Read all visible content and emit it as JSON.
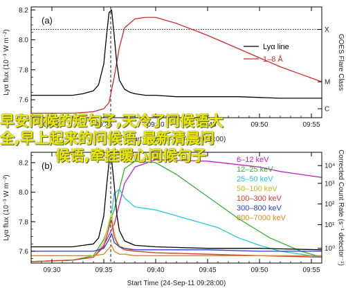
{
  "watermark": {
    "line1": "早安问候的短句子,天冷了问候语大",
    "line2": "全,早上起来的问候语,最新清晨问",
    "line3": "候语,牵挂暖心问候句子"
  },
  "chart_data": [
    {
      "type": "line",
      "panel_label": "(a)",
      "xlabel": "Start Time (24-Sep-11 09:28:00)",
      "ylabel": "Lyα flux (10⁻³ W m⁻²)",
      "right_label": "GOES Flare Class",
      "xlim": [
        "09:28",
        "09:56"
      ],
      "ylim": [
        7.48,
        8.22
      ],
      "x_ticks": [
        "09:30",
        "09:35",
        "09:40",
        "09:45",
        "09:50",
        "09:55"
      ],
      "y_ticks": [
        7.6,
        7.8,
        8.0,
        8.2
      ],
      "right_ticks": [
        "X",
        "M",
        "C"
      ],
      "right_tick_values": [
        8.07,
        7.72,
        7.54
      ],
      "reference_line": {
        "y": 8.07,
        "style": "dotted"
      },
      "vline": {
        "x": "09:35:40",
        "style": "dashed"
      },
      "legend_position": "top-right",
      "series": [
        {
          "name": "Lyα line",
          "color": "#000000",
          "x": [
            "09:28",
            "09:30",
            "09:32",
            "09:33",
            "09:34",
            "09:34:30",
            "09:35",
            "09:35:15",
            "09:35:30",
            "09:35:45",
            "09:36",
            "09:36:15",
            "09:36:30",
            "09:37",
            "09:37:30",
            "09:38",
            "09:39",
            "09:40",
            "09:42",
            "09:45",
            "09:48",
            "09:52",
            "09:56"
          ],
          "values": [
            7.63,
            7.63,
            7.63,
            7.64,
            7.66,
            7.7,
            7.84,
            8.02,
            8.18,
            8.2,
            8.03,
            7.84,
            7.73,
            7.67,
            7.65,
            7.64,
            7.63,
            7.63,
            7.62,
            7.62,
            7.62,
            7.61,
            7.61
          ]
        },
        {
          "name": "1–8 Å",
          "color": "#d2282d",
          "x": [
            "09:28",
            "09:32",
            "09:34",
            "09:35",
            "09:35:30",
            "09:36",
            "09:36:30",
            "09:37",
            "09:38",
            "09:39",
            "09:40",
            "09:42",
            "09:45",
            "09:48",
            "09:50",
            "09:52",
            "09:54",
            "09:56"
          ],
          "values": [
            7.51,
            7.51,
            7.52,
            7.54,
            7.58,
            7.75,
            7.95,
            8.08,
            8.14,
            8.15,
            8.15,
            8.11,
            8.03,
            7.94,
            7.88,
            7.82,
            7.77,
            7.72
          ]
        }
      ]
    },
    {
      "type": "line",
      "panel_label": "(b)",
      "xlabel": "Start Time (24-Sep-11 09:28:00)",
      "ylabel": "Lyα flux (10⁻³ W m⁻²)",
      "right_label": "Corrected Count Rate (s⁻¹ detector⁻¹)",
      "xlim": [
        "09:28",
        "09:56"
      ],
      "ylim": [
        7.52,
        8.27
      ],
      "x_ticks": [
        "09:30",
        "09:35",
        "09:40",
        "09:45",
        "09:50",
        "09:55"
      ],
      "y_ticks": [
        7.6,
        7.8,
        8.0,
        8.2
      ],
      "right_ticks": [
        "10⁴",
        "10³",
        "10²",
        "10¹",
        "10⁰"
      ],
      "right_tick_values": [
        8.18,
        8.06,
        7.92,
        7.78,
        7.62
      ],
      "vline": {
        "x": "09:35:40",
        "style": "dashed"
      },
      "legend_position": "top-right",
      "series": [
        {
          "name": "Lyα flux",
          "color": "#000000",
          "x": [
            "09:28",
            "09:30",
            "09:32",
            "09:34",
            "09:34:30",
            "09:35",
            "09:35:15",
            "09:35:30",
            "09:35:45",
            "09:36",
            "09:36:15",
            "09:36:30",
            "09:37",
            "09:38",
            "09:40",
            "09:45",
            "09:50",
            "09:56"
          ],
          "values": [
            7.63,
            7.63,
            7.63,
            7.65,
            7.69,
            7.84,
            8.03,
            8.2,
            8.22,
            8.05,
            7.85,
            7.74,
            7.67,
            7.64,
            7.63,
            7.62,
            7.62,
            7.61
          ]
        },
        {
          "name": "6–12 keV",
          "color": "#c020c0",
          "x": [
            "09:28",
            "09:32",
            "09:34",
            "09:35",
            "09:36",
            "09:37",
            "09:38",
            "09:40",
            "09:45",
            "09:50",
            "09:52",
            "09:54",
            "09:56"
          ],
          "values": [
            7.53,
            7.54,
            7.56,
            7.64,
            7.78,
            8.06,
            8.17,
            8.22,
            8.21,
            8.17,
            8.14,
            8.12,
            8.1
          ]
        },
        {
          "name": "12–25 keV",
          "color": "#34b034",
          "x": [
            "09:28",
            "09:32",
            "09:34",
            "09:35",
            "09:36",
            "09:37",
            "09:38",
            "09:40",
            "09:42",
            "09:45",
            "09:48",
            "09:51",
            "09:54",
            "09:56"
          ],
          "values": [
            7.53,
            7.54,
            7.57,
            7.68,
            7.88,
            8.16,
            8.21,
            8.2,
            8.12,
            7.97,
            7.82,
            7.69,
            7.6,
            7.56
          ]
        },
        {
          "name": "25–50 keV",
          "color": "#22c8d8",
          "x": [
            "09:28",
            "09:32",
            "09:34",
            "09:35",
            "09:35:45",
            "09:36",
            "09:36:30",
            "09:37",
            "09:38",
            "09:40",
            "09:43",
            "09:46",
            "09:48",
            "09:50",
            "09:52",
            "09:56"
          ],
          "values": [
            7.53,
            7.54,
            7.56,
            7.66,
            7.86,
            7.99,
            8.02,
            7.96,
            7.9,
            7.88,
            7.82,
            7.76,
            7.69,
            7.64,
            7.6,
            7.56
          ]
        },
        {
          "name": "50–100 keV",
          "color": "#e0d040",
          "x": [
            "09:28",
            "09:32",
            "09:34",
            "09:35",
            "09:35:30",
            "09:35:45",
            "09:36",
            "09:36:15",
            "09:36:30",
            "09:37",
            "09:38",
            "09:40",
            "09:45",
            "09:50",
            "09:56"
          ],
          "values": [
            7.53,
            7.54,
            7.56,
            7.66,
            7.8,
            7.86,
            7.73,
            7.67,
            7.64,
            7.62,
            7.6,
            7.59,
            7.58,
            7.57,
            7.56
          ]
        },
        {
          "name": "100–300 keV",
          "color": "#d23a2a",
          "x": [
            "09:28",
            "09:32",
            "09:34",
            "09:35",
            "09:35:30",
            "09:35:45",
            "09:36",
            "09:36:15",
            "09:36:30",
            "09:37",
            "09:38",
            "09:40",
            "09:45",
            "09:50",
            "09:56"
          ],
          "values": [
            7.53,
            7.54,
            7.56,
            7.63,
            7.76,
            7.81,
            7.7,
            7.66,
            7.63,
            7.61,
            7.6,
            7.59,
            7.58,
            7.57,
            7.56
          ]
        },
        {
          "name": "300–800 keV",
          "color": "#2a3cc8",
          "x": [
            "09:28",
            "09:32",
            "09:34",
            "09:35",
            "09:35:30",
            "09:35:45",
            "09:36",
            "09:36:30",
            "09:37",
            "09:38",
            "09:40",
            "09:45",
            "09:50",
            "09:56"
          ],
          "values": [
            7.6,
            7.6,
            7.6,
            7.62,
            7.68,
            7.72,
            7.66,
            7.63,
            7.62,
            7.61,
            7.61,
            7.61,
            7.6,
            7.6
          ]
        },
        {
          "name": "800–7000 keV",
          "color": "#d88a1a",
          "x": [
            "09:28",
            "09:32",
            "09:34",
            "09:35",
            "09:35:30",
            "09:35:45",
            "09:36",
            "09:36:30",
            "09:37",
            "09:38",
            "09:40",
            "09:45",
            "09:50",
            "09:56"
          ],
          "values": [
            7.57,
            7.57,
            7.57,
            7.58,
            7.62,
            7.64,
            7.6,
            7.58,
            7.58,
            7.57,
            7.57,
            7.57,
            7.57,
            7.57
          ]
        }
      ]
    }
  ]
}
